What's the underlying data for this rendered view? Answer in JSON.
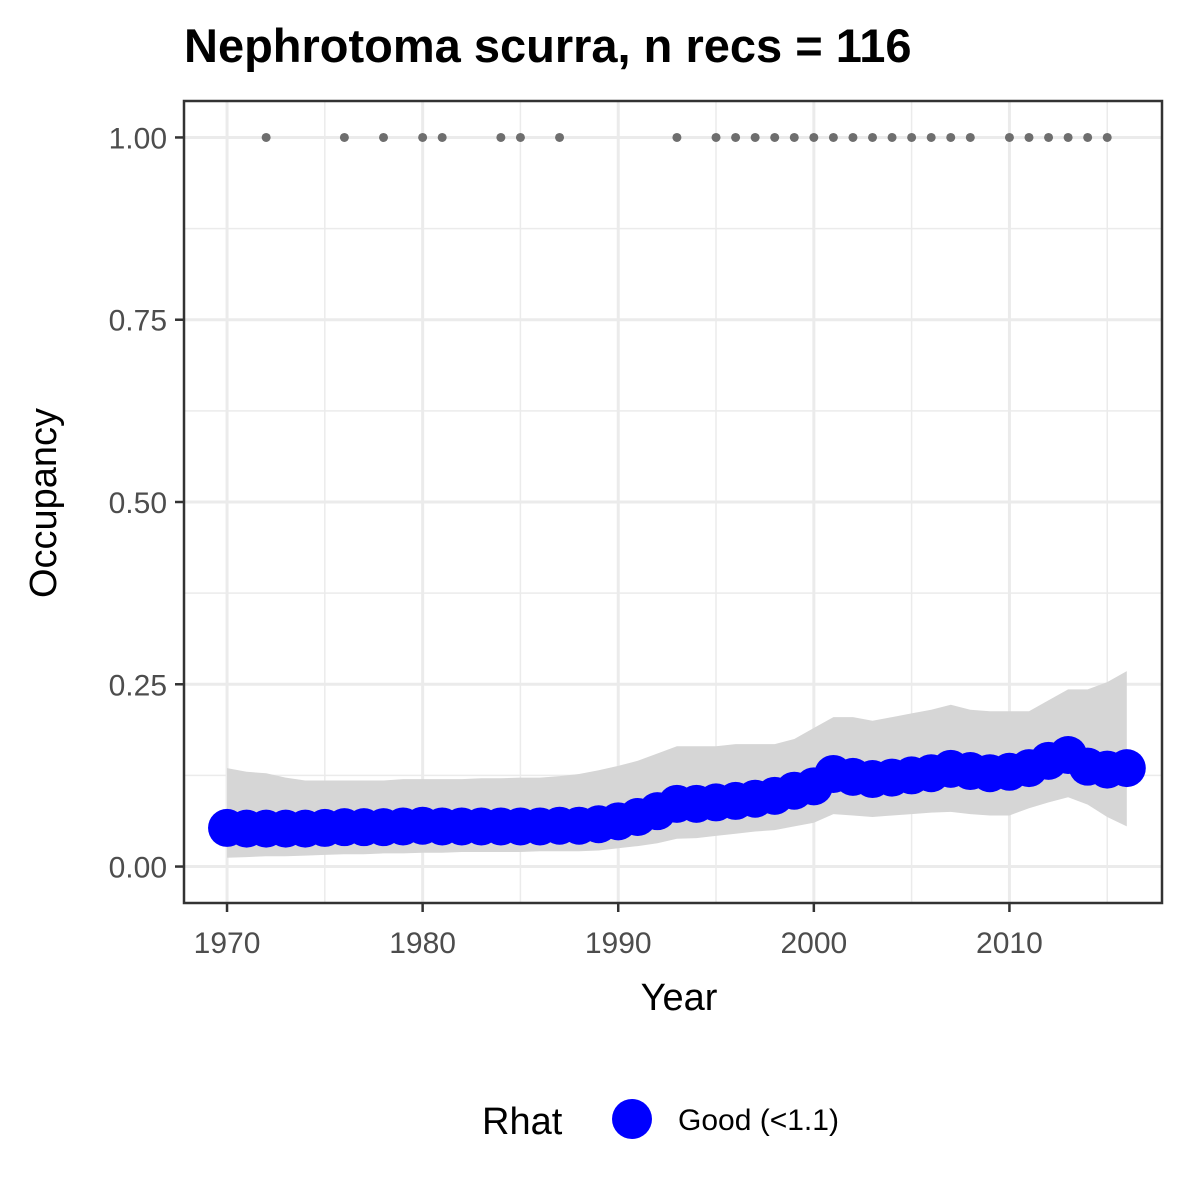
{
  "chart_data": {
    "type": "line",
    "title": "Nephrotoma scurra, n recs = 116",
    "xlabel": "Year",
    "ylabel": "Occupancy",
    "xlim": [
      1967.8,
      2017.8
    ],
    "ylim": [
      -0.05,
      1.05
    ],
    "x_ticks": [
      1970,
      1980,
      1990,
      2000,
      2010
    ],
    "x_tick_labels": [
      "1970",
      "1980",
      "1990",
      "2000",
      "2010"
    ],
    "y_ticks": [
      0,
      0.25,
      0.5,
      0.75,
      1.0
    ],
    "y_tick_labels": [
      "0.00",
      "0.25",
      "0.50",
      "0.75",
      "1.00"
    ],
    "grid": true,
    "legend": {
      "title": "Rhat",
      "position": "bottom",
      "entries": [
        {
          "label": "Good (<1.1)",
          "color": "#0000ff"
        }
      ]
    },
    "colors": {
      "estimate": "#0000ff",
      "ribbon": "#d6d6d6",
      "records": "#6e6e6e",
      "grid": "#ebebeb",
      "panel_border": "#333333"
    },
    "series": [
      {
        "name": "Good (<1.1)",
        "type": "points",
        "x": [
          1970,
          1971,
          1972,
          1973,
          1974,
          1975,
          1976,
          1977,
          1978,
          1979,
          1980,
          1981,
          1982,
          1983,
          1984,
          1985,
          1986,
          1987,
          1988,
          1989,
          1990,
          1991,
          1992,
          1993,
          1994,
          1995,
          1996,
          1997,
          1998,
          1999,
          2000,
          2001,
          2002,
          2003,
          2004,
          2005,
          2006,
          2007,
          2008,
          2009,
          2010,
          2011,
          2012,
          2013,
          2014,
          2015,
          2016
        ],
        "y": [
          0.053,
          0.052,
          0.052,
          0.052,
          0.052,
          0.053,
          0.054,
          0.054,
          0.054,
          0.055,
          0.056,
          0.055,
          0.055,
          0.055,
          0.055,
          0.055,
          0.055,
          0.056,
          0.056,
          0.058,
          0.062,
          0.068,
          0.076,
          0.086,
          0.086,
          0.088,
          0.09,
          0.093,
          0.097,
          0.104,
          0.11,
          0.127,
          0.123,
          0.12,
          0.122,
          0.125,
          0.128,
          0.134,
          0.131,
          0.128,
          0.13,
          0.135,
          0.145,
          0.153,
          0.137,
          0.133,
          0.135
        ]
      },
      {
        "name": "",
        "type": "ribbon",
        "x": [
          1970,
          1971,
          1972,
          1973,
          1974,
          1975,
          1976,
          1977,
          1978,
          1979,
          1980,
          1981,
          1982,
          1983,
          1984,
          1985,
          1986,
          1987,
          1988,
          1989,
          1990,
          1991,
          1992,
          1993,
          1994,
          1995,
          1996,
          1997,
          1998,
          1999,
          2000,
          2001,
          2002,
          2003,
          2004,
          2005,
          2006,
          2007,
          2008,
          2009,
          2010,
          2011,
          2012,
          2013,
          2014,
          2015,
          2016
        ],
        "lower": [
          0.012,
          0.013,
          0.014,
          0.014,
          0.015,
          0.016,
          0.017,
          0.017,
          0.018,
          0.018,
          0.019,
          0.019,
          0.02,
          0.02,
          0.02,
          0.02,
          0.021,
          0.021,
          0.021,
          0.022,
          0.025,
          0.028,
          0.032,
          0.038,
          0.039,
          0.042,
          0.045,
          0.048,
          0.05,
          0.055,
          0.06,
          0.072,
          0.07,
          0.068,
          0.07,
          0.072,
          0.074,
          0.075,
          0.072,
          0.07,
          0.07,
          0.08,
          0.088,
          0.095,
          0.085,
          0.068,
          0.055
        ],
        "upper": [
          0.135,
          0.13,
          0.128,
          0.122,
          0.118,
          0.118,
          0.118,
          0.118,
          0.118,
          0.12,
          0.12,
          0.12,
          0.12,
          0.121,
          0.121,
          0.122,
          0.122,
          0.124,
          0.127,
          0.132,
          0.138,
          0.145,
          0.155,
          0.165,
          0.165,
          0.165,
          0.168,
          0.168,
          0.168,
          0.175,
          0.19,
          0.205,
          0.205,
          0.2,
          0.205,
          0.21,
          0.215,
          0.222,
          0.215,
          0.213,
          0.213,
          0.213,
          0.228,
          0.243,
          0.243,
          0.253,
          0.268
        ]
      },
      {
        "name": "",
        "type": "records",
        "x": [
          1972,
          1976,
          1978,
          1980,
          1981,
          1984,
          1985,
          1987,
          1993,
          1995,
          1996,
          1997,
          1998,
          1999,
          2000,
          2001,
          2002,
          2003,
          2004,
          2005,
          2006,
          2007,
          2008,
          2010,
          2011,
          2012,
          2013,
          2014,
          2015
        ],
        "y": [
          1,
          1,
          1,
          1,
          1,
          1,
          1,
          1,
          1,
          1,
          1,
          1,
          1,
          1,
          1,
          1,
          1,
          1,
          1,
          1,
          1,
          1,
          1,
          1,
          1,
          1,
          1,
          1,
          1
        ]
      }
    ]
  }
}
